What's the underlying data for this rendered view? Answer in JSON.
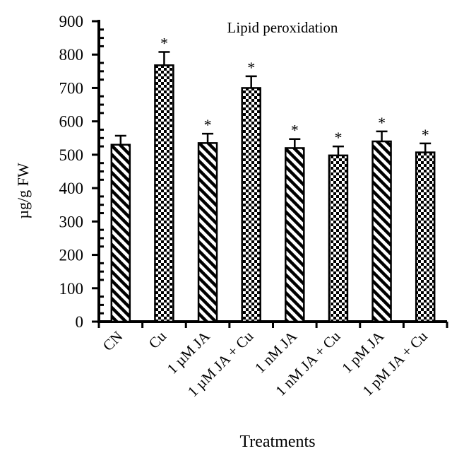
{
  "chart_data": {
    "type": "bar",
    "title": "Lipid peroxidation",
    "xlabel": "Treatments",
    "ylabel": "µg/g FW",
    "ylim": [
      0,
      900
    ],
    "yticks": [
      "0",
      "100",
      "200",
      "300",
      "400",
      "500",
      "600",
      "700",
      "800",
      "900"
    ],
    "categories": [
      "CN",
      "Cu",
      "1 µM JA",
      "1 µM JA + Cu",
      "1 nM JA",
      "1 nM JA + Cu",
      "1 pM JA",
      "1 pM JA + Cu"
    ],
    "values": [
      530,
      768,
      535,
      700,
      520,
      498,
      540,
      507
    ],
    "errors": [
      27,
      40,
      28,
      35,
      27,
      27,
      30,
      27
    ],
    "significance": [
      "",
      "*",
      "*",
      "*",
      "*",
      "*",
      "*",
      "*"
    ],
    "patterns": [
      "hatch",
      "check",
      "hatch",
      "check",
      "hatch",
      "check",
      "hatch",
      "check"
    ],
    "grid": false,
    "legend": "none",
    "colors": {
      "bar_stroke": "#000000",
      "background": "#ffffff"
    }
  }
}
